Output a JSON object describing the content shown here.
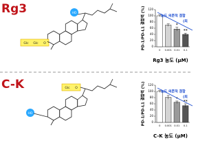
{
  "chart_data": [
    {
      "type": "bar",
      "label": "Rg3",
      "ylabel": "PD-1/PD-L1 결합력 (%)",
      "xlabel": "Rg3 농도 (μM)",
      "categories": [
        "0",
        "0.001",
        "0.01",
        "0.1"
      ],
      "values": [
        100,
        70,
        57,
        40
      ],
      "errors": [
        3,
        4,
        6,
        4
      ],
      "colors": [
        "#ffffff",
        "#d4d4d4",
        "#9a9a9a",
        "#555555"
      ],
      "significance": [
        null,
        null,
        "*",
        "**"
      ],
      "note_lines": [
        "농도 의존적 결합",
        "(최"
      ],
      "note_color": "#1f4fd0",
      "ylim": [
        0,
        120
      ],
      "yticks": [
        0,
        20,
        40,
        60,
        80,
        100,
        120
      ]
    },
    {
      "type": "bar",
      "label": "C-K",
      "ylabel": "PD-1/PD-L1 결합력 (%)",
      "xlabel": "C-K 농도 (μM)",
      "categories": [
        "0",
        "0.001",
        "0.01",
        "0.1"
      ],
      "values": [
        100,
        81,
        65,
        54
      ],
      "errors": [
        3,
        6,
        4,
        6
      ],
      "colors": [
        "#ffffff",
        "#d4d4d4",
        "#9a9a9a",
        "#555555"
      ],
      "significance": [
        null,
        null,
        "*",
        "**"
      ],
      "note_lines": [
        "농도 의존적 결합",
        "(최"
      ],
      "note_color": "#1f4fd0",
      "ylim": [
        0,
        120
      ],
      "yticks": [
        0,
        20,
        40,
        60,
        80,
        100,
        120
      ]
    }
  ],
  "molecules": [
    {
      "labels": [
        "HO",
        "Glc",
        "Glc",
        "O"
      ]
    },
    {
      "labels": [
        "Glc",
        "O",
        "HO"
      ]
    }
  ]
}
